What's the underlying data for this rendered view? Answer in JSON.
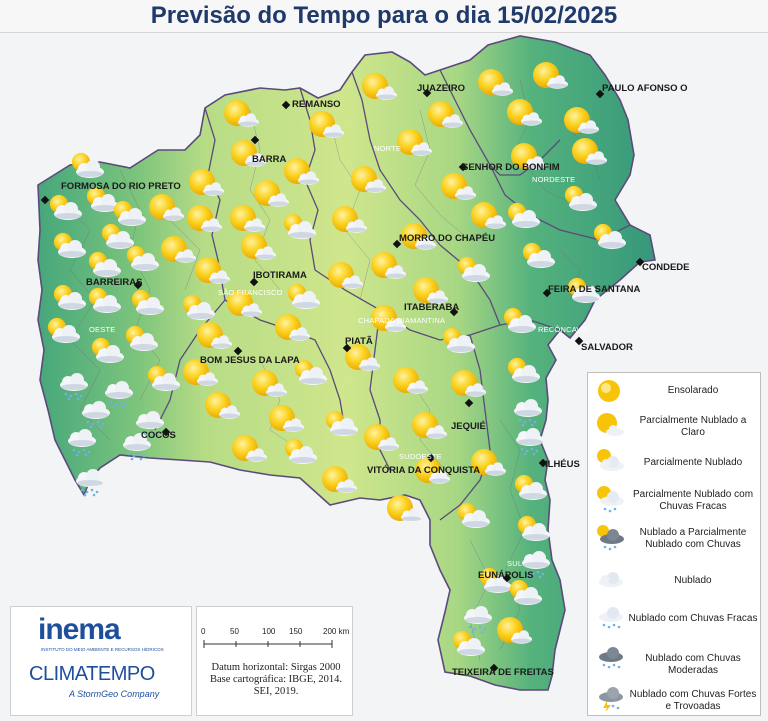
{
  "title": "Previsão do Tempo para o dia 15/02/2025",
  "colors": {
    "green_light": "#c9e38a",
    "green_mid": "#8fcf7d",
    "green_dark": "#3fa37a",
    "border": "#5b4a7a",
    "sun": "#f8c40a",
    "cloud": "#e9eef4"
  },
  "cities": {
    "remanso": "REMANSO",
    "juazeiro": "JUAZEIRO",
    "paulo_afonso": "PAULO AFONSO O",
    "barra": "BARRA",
    "senhor_bonfim": "SENHOR DO BONFIM",
    "formosa": "FORMOSA DO RIO PRETO",
    "morro_chapeu": "MORRO DO CHAPÉU",
    "condede": "CONDEDE",
    "ibotirama": "IBOTIRAMA",
    "feira": "FEIRA DE SANTANA",
    "barreiras": "BARREIRAS",
    "itaberaba": "ITABERABA",
    "salvador": "SALVADOR",
    "bom_jesus": "BOM JESUS DA LAPA",
    "piata": "PIATÃ",
    "jequie": "JEQUIÉ",
    "cocos": "COCOS",
    "ilheus": "ILHÉUS",
    "vitoria": "VITÓRIA DA CONQUISTA",
    "eunapolis": "EUNÁPOLIS",
    "teixeira": "TEIXEIRA DE FREITAS"
  },
  "regions": {
    "norte": "NORTE",
    "nordeste": "NORDESTE",
    "sao_francisco": "SÃO FRANCISCO",
    "chapada": "CHAPADA DIAMANTINA",
    "oeste": "OESTE",
    "reconcavo": "RECÔNCAVO",
    "sudoeste": "SUDOESTE",
    "sul": "SUL"
  },
  "legend": {
    "items": [
      {
        "label": "Ensolarado",
        "icon": "sun-icon"
      },
      {
        "label": "Parcialmente Nublado a Claro",
        "icon": "sun-small-cloud-icon"
      },
      {
        "label": "Parcialmente Nublado",
        "icon": "sun-cloud-icon"
      },
      {
        "label": "Parcialmente Nublado com Chuvas Fracas",
        "icon": "sun-cloud-rain-icon"
      },
      {
        "label": "Nublado a Parcialmente Nublado com Chuvas",
        "icon": "dark-cloud-sun-rain-icon"
      },
      {
        "label": "Nublado",
        "icon": "cloud-icon"
      },
      {
        "label": "Nublado com Chuvas Fracas",
        "icon": "cloud-light-rain-icon"
      },
      {
        "label": "Nublado com Chuvas Moderadas",
        "icon": "dark-cloud-rain-icon"
      },
      {
        "label": "Nublado com Chuvas Fortes e Trovoadas",
        "icon": "storm-cloud-icon"
      }
    ]
  },
  "logos": {
    "inema": "inema",
    "inema_sub": "INSTITUTO DO MEIO AMBIENTE E RECURSOS HÍDRICOS",
    "climatempo": "CLIMATEMPO",
    "stormgeo": "A StormGeo Company"
  },
  "scale": {
    "ticks": [
      "0",
      "50",
      "100",
      "150",
      "200 km"
    ],
    "datum_1": "Datum horizontal: Sirgas 2000",
    "datum_2": "Base cartográfica: IBGE, 2014.",
    "datum_3": "SEI, 2019."
  }
}
